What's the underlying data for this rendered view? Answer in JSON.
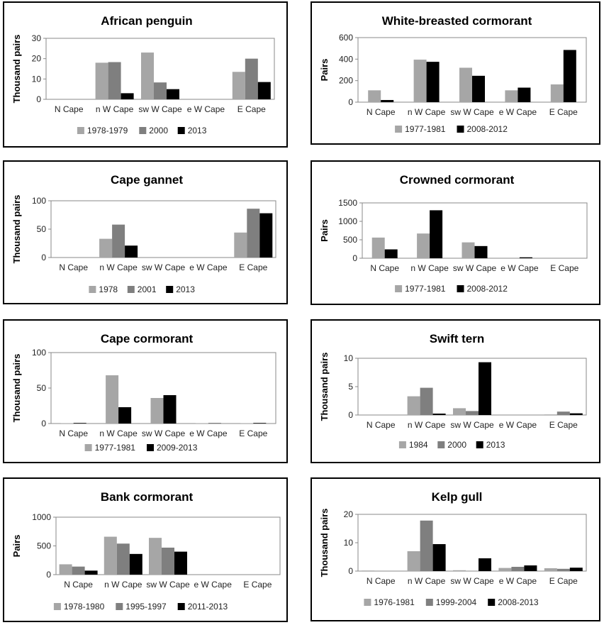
{
  "chart_data": [
    {
      "id": "african-penguin",
      "type": "bar",
      "title": "African penguin",
      "ylabel": "Thousand pairs",
      "ylim": [
        0,
        30
      ],
      "yticks": [
        0,
        10,
        20,
        30
      ],
      "categories": [
        "N Cape",
        "n W Cape",
        "sw W Cape",
        "e W Cape",
        "E Cape"
      ],
      "series": [
        {
          "name": "1978-1979",
          "color": "#a6a6a6",
          "values": [
            0,
            18,
            23,
            0,
            13.5
          ]
        },
        {
          "name": "2000",
          "color": "#7f7f7f",
          "values": [
            0,
            18.3,
            8.3,
            0,
            20
          ]
        },
        {
          "name": "2013",
          "color": "#000000",
          "values": [
            0,
            3,
            5,
            0,
            8.5
          ]
        }
      ]
    },
    {
      "id": "white-breasted-cormorant",
      "type": "bar",
      "title": "White-breasted cormorant",
      "ylabel": "Pairs",
      "ylim": [
        0,
        600
      ],
      "yticks": [
        0,
        200,
        400,
        600
      ],
      "categories": [
        "N Cape",
        "n W Cape",
        "sw W Cape",
        "e W Cape",
        "E Cape"
      ],
      "series": [
        {
          "name": "1977-1981",
          "color": "#a6a6a6",
          "values": [
            110,
            395,
            320,
            110,
            165
          ]
        },
        {
          "name": "2008-2012",
          "color": "#000000",
          "values": [
            20,
            375,
            245,
            135,
            485
          ]
        }
      ]
    },
    {
      "id": "cape-gannet",
      "type": "bar",
      "title": "Cape gannet",
      "ylabel": "Thousand pairs",
      "ylim": [
        0,
        100
      ],
      "yticks": [
        0,
        50,
        100
      ],
      "categories": [
        "N Cape",
        "n W Cape",
        "sw W Cape",
        "e W Cape",
        "E Cape"
      ],
      "series": [
        {
          "name": "1978",
          "color": "#a6a6a6",
          "values": [
            0,
            33,
            0,
            0,
            44
          ]
        },
        {
          "name": "2001",
          "color": "#7f7f7f",
          "values": [
            0,
            58,
            0,
            0,
            86
          ]
        },
        {
          "name": "2013",
          "color": "#000000",
          "values": [
            0,
            21,
            0,
            0,
            78
          ]
        }
      ]
    },
    {
      "id": "crowned-cormorant",
      "type": "bar",
      "title": "Crowned cormorant",
      "ylabel": "Pairs",
      "ylim": [
        0,
        1500
      ],
      "yticks": [
        0,
        500,
        1000,
        1500
      ],
      "categories": [
        "N Cape",
        "n W Cape",
        "sw W Cape",
        "e W Cape",
        "E Cape"
      ],
      "series": [
        {
          "name": "1977-1981",
          "color": "#a6a6a6",
          "values": [
            560,
            670,
            430,
            0,
            0
          ]
        },
        {
          "name": "2008-2012",
          "color": "#000000",
          "values": [
            240,
            1300,
            330,
            25,
            0
          ]
        }
      ]
    },
    {
      "id": "cape-cormorant",
      "type": "bar",
      "title": "Cape cormorant",
      "ylabel": "Thousand pairs",
      "ylim": [
        0,
        100
      ],
      "yticks": [
        0,
        50,
        100
      ],
      "categories": [
        "N Cape",
        "n W Cape",
        "sw W Cape",
        "e W Cape",
        "E Cape"
      ],
      "series": [
        {
          "name": "1977-1981",
          "color": "#a6a6a6",
          "values": [
            0.5,
            68,
            36,
            0.5,
            0.5
          ]
        },
        {
          "name": "2009-2013",
          "color": "#000000",
          "values": [
            0.8,
            23,
            40,
            0.5,
            0.8
          ]
        }
      ]
    },
    {
      "id": "swift-tern",
      "type": "bar",
      "title": "Swift tern",
      "ylabel": "Thousand pairs",
      "ylim": [
        0,
        10
      ],
      "yticks": [
        0,
        5,
        10
      ],
      "categories": [
        "N Cape",
        "n W Cape",
        "sw W Cape",
        "e W Cape",
        "E Cape"
      ],
      "series": [
        {
          "name": "1984",
          "color": "#a6a6a6",
          "values": [
            0,
            3.3,
            1.2,
            0,
            0.1
          ]
        },
        {
          "name": "2000",
          "color": "#7f7f7f",
          "values": [
            0,
            4.8,
            0.7,
            0,
            0.6
          ]
        },
        {
          "name": "2013",
          "color": "#000000",
          "values": [
            0,
            0.25,
            9.3,
            0,
            0.3
          ]
        }
      ]
    },
    {
      "id": "bank-cormorant",
      "type": "bar",
      "title": "Bank cormorant",
      "ylabel": "Pairs",
      "ylim": [
        0,
        1000
      ],
      "yticks": [
        0,
        500,
        1000
      ],
      "categories": [
        "N Cape",
        "n W Cape",
        "sw W Cape",
        "e W Cape",
        "E Cape"
      ],
      "series": [
        {
          "name": "1978-1980",
          "color": "#a6a6a6",
          "values": [
            180,
            660,
            640,
            0,
            0
          ]
        },
        {
          "name": "1995-1997",
          "color": "#7f7f7f",
          "values": [
            140,
            540,
            470,
            0,
            0
          ]
        },
        {
          "name": "2011-2013",
          "color": "#000000",
          "values": [
            70,
            360,
            400,
            0,
            0
          ]
        }
      ]
    },
    {
      "id": "kelp-gull",
      "type": "bar",
      "title": "Kelp gull",
      "ylabel": "Thousand pairs",
      "ylim": [
        0,
        20
      ],
      "yticks": [
        0,
        10,
        20
      ],
      "categories": [
        "N Cape",
        "n W Cape",
        "sw W Cape",
        "e W Cape",
        "E Cape"
      ],
      "series": [
        {
          "name": "1976-1981",
          "color": "#a6a6a6",
          "values": [
            0.2,
            7,
            0.3,
            1.1,
            1
          ]
        },
        {
          "name": "1999-2004",
          "color": "#7f7f7f",
          "values": [
            0,
            17.8,
            0,
            1.5,
            0.8
          ]
        },
        {
          "name": "2008-2013",
          "color": "#000000",
          "values": [
            0,
            9.5,
            4.5,
            2,
            1.2
          ]
        }
      ]
    }
  ]
}
